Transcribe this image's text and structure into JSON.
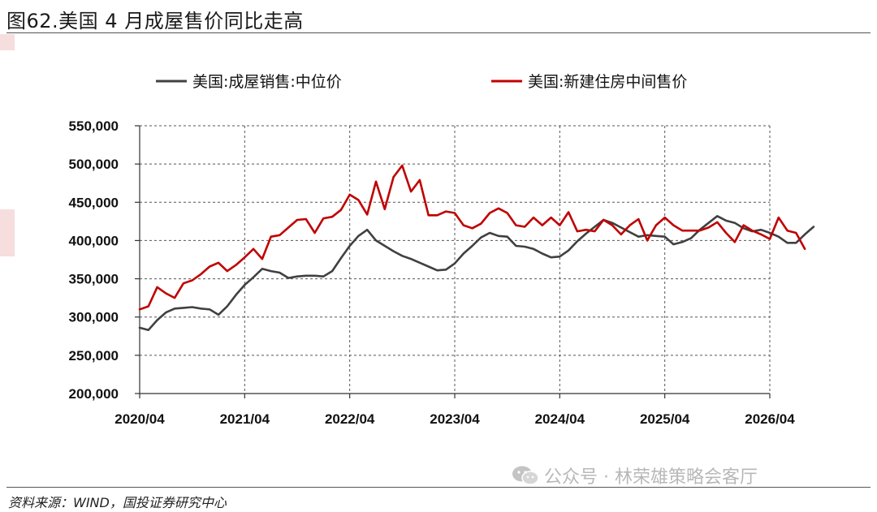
{
  "figure": {
    "title": "图62.美国 4 月成屋售价同比走高",
    "source": "资料来源：WIND，国投证券研究中心",
    "watermark": "公众号 · 林荣雄策略会客厅",
    "watermark_icon": "wechat-icon"
  },
  "chart_data": {
    "type": "line",
    "x_start": "2020/04",
    "x_step": "month",
    "x_ticks": [
      "2020/04",
      "2021/04",
      "2022/04",
      "2023/04",
      "2024/04",
      "2025/04",
      "2026/04"
    ],
    "y_ticks": [
      "200,000",
      "250,000",
      "300,000",
      "350,000",
      "400,000",
      "450,000",
      "500,000",
      "550,000"
    ],
    "ylim": [
      200000,
      550000
    ],
    "xlim": [
      "2020/04",
      "2026/04"
    ],
    "grid": "dashed",
    "legend_position": "top",
    "series": [
      {
        "name": "美国:成屋销售:中位价",
        "color": "#404040",
        "values": [
          286000,
          283000,
          296000,
          306000,
          311000,
          312000,
          313000,
          311000,
          310000,
          303000,
          314000,
          329000,
          342000,
          352000,
          363000,
          360000,
          358000,
          351000,
          353000,
          354000,
          354000,
          353000,
          360000,
          377000,
          393000,
          406000,
          414000,
          400000,
          393000,
          386000,
          380000,
          376000,
          371000,
          366000,
          361000,
          362000,
          370000,
          383000,
          393000,
          404000,
          410000,
          406000,
          405000,
          393000,
          392000,
          389000,
          383000,
          378000,
          379000,
          387000,
          399000,
          409000,
          418000,
          427000,
          423000,
          417000,
          411000,
          405000,
          407000,
          406000,
          405000,
          395000,
          398000,
          403000,
          414000,
          423000,
          432000,
          426000,
          423000,
          416000,
          412000,
          414000,
          410000,
          405000,
          397000,
          397000,
          408000,
          418000
        ]
      },
      {
        "name": "美国:新建住房中间售价",
        "color": "#c00000",
        "values": [
          310000,
          314000,
          339000,
          331000,
          325000,
          344000,
          348000,
          356000,
          366000,
          371000,
          360000,
          368000,
          378000,
          389000,
          376000,
          405000,
          407000,
          417000,
          427000,
          428000,
          410000,
          429000,
          431000,
          440000,
          460000,
          453000,
          434000,
          477000,
          441000,
          483000,
          498000,
          464000,
          479000,
          433000,
          433000,
          438000,
          436000,
          420000,
          416000,
          422000,
          436000,
          442000,
          436000,
          420000,
          418000,
          430000,
          420000,
          430000,
          420000,
          437000,
          412000,
          414000,
          412000,
          427000,
          420000,
          408000,
          420000,
          428000,
          400000,
          420000,
          430000,
          420000,
          413000,
          413000,
          413000,
          417000,
          424000,
          410000,
          398000,
          420000,
          413000,
          408000,
          402000,
          430000,
          413000,
          410000,
          389000
        ]
      }
    ]
  }
}
